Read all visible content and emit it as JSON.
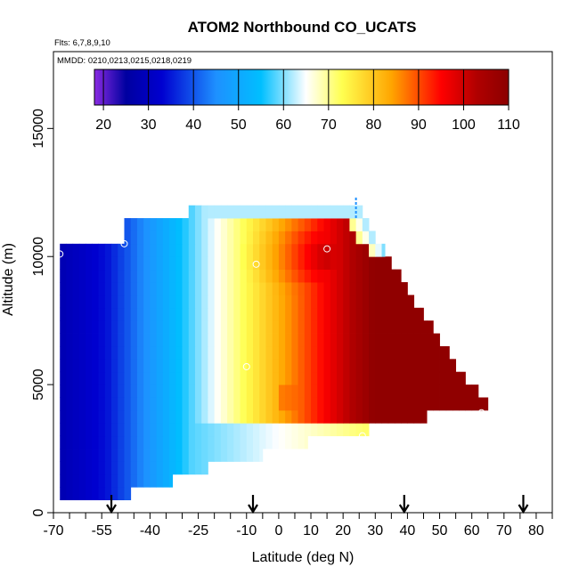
{
  "chart_data": {
    "type": "heatmap",
    "title": "ATOM2 Northbound CO_UCATS",
    "subtitle_flights": "Flts: 6,7,8,9,10",
    "subtitle_dates": "MMDD: 0210,0213,0215,0218,0219",
    "xlabel": "Latitude (deg N)",
    "ylabel": "Altitude (m)",
    "xlim": [
      -70,
      85
    ],
    "ylim": [
      0,
      18000
    ],
    "x_ticks": [
      -70,
      -55,
      -40,
      -25,
      -10,
      0,
      10,
      20,
      30,
      40,
      50,
      60,
      70,
      80
    ],
    "y_ticks": [
      0,
      5000,
      10000,
      15000
    ],
    "colorbar": {
      "min": 18,
      "max": 110,
      "ticks": [
        20,
        30,
        40,
        50,
        60,
        70,
        80,
        90,
        100,
        110
      ],
      "colors": [
        "#8a2be2",
        "#0000a0",
        "#0000d0",
        "#1e90ff",
        "#00bfff",
        "#ffffff",
        "#ffff50",
        "#ffa500",
        "#ff0000",
        "#b00000",
        "#8b0000"
      ],
      "color_stops": [
        18,
        25,
        33,
        45,
        55,
        65,
        73,
        84,
        95,
        103,
        110
      ],
      "placement": "top inside plot"
    },
    "field": {
      "description": "CO mixing ratio (ppb) by latitude and altitude",
      "rows": [
        {
          "alt_min": 500,
          "alt_max": 1000,
          "lat_min": -68,
          "lat_max": -46
        },
        {
          "alt_min": 1000,
          "alt_max": 1500,
          "lat_min": -68,
          "lat_max": -33
        },
        {
          "alt_min": 1500,
          "alt_max": 2000,
          "lat_min": -68,
          "lat_max": -22
        },
        {
          "alt_min": 2000,
          "alt_max": 2500,
          "lat_min": -68,
          "lat_max": -5
        },
        {
          "alt_min": 2500,
          "alt_max": 3000,
          "lat_min": -68,
          "lat_max": 9
        },
        {
          "alt_min": 3000,
          "alt_max": 3500,
          "lat_min": -68,
          "lat_max": 28
        },
        {
          "alt_min": 3500,
          "alt_max": 4000,
          "lat_min": -68,
          "lat_max": 46
        },
        {
          "alt_min": 4000,
          "alt_max": 4500,
          "lat_min": -68,
          "lat_max": 65
        },
        {
          "alt_min": 4500,
          "alt_max": 5000,
          "lat_min": -68,
          "lat_max": 62
        },
        {
          "alt_min": 5000,
          "alt_max": 5500,
          "lat_min": -68,
          "lat_max": 58
        },
        {
          "alt_min": 5500,
          "alt_max": 6000,
          "lat_min": -68,
          "lat_max": 55
        },
        {
          "alt_min": 6000,
          "alt_max": 6500,
          "lat_min": -68,
          "lat_max": 53
        },
        {
          "alt_min": 6500,
          "alt_max": 7000,
          "lat_min": -68,
          "lat_max": 50
        },
        {
          "alt_min": 7000,
          "alt_max": 7500,
          "lat_min": -68,
          "lat_max": 48
        },
        {
          "alt_min": 7500,
          "alt_max": 8000,
          "lat_min": -68,
          "lat_max": 45
        },
        {
          "alt_min": 8000,
          "alt_max": 8500,
          "lat_min": -68,
          "lat_max": 42
        },
        {
          "alt_min": 8500,
          "alt_max": 9000,
          "lat_min": -68,
          "lat_max": 40
        },
        {
          "alt_min": 9000,
          "alt_max": 9500,
          "lat_min": -68,
          "lat_max": 38
        },
        {
          "alt_min": 9500,
          "alt_max": 10000,
          "lat_min": -68,
          "lat_max": 35
        },
        {
          "alt_min": 10000,
          "alt_max": 10500,
          "lat_min": -68,
          "lat_max": 33
        },
        {
          "alt_min": 10500,
          "alt_max": 11000,
          "lat_min": -48,
          "lat_max": 30
        },
        {
          "alt_min": 11000,
          "alt_max": 11500,
          "lat_min": -48,
          "lat_max": 28
        },
        {
          "alt_min": 11500,
          "alt_max": 12000,
          "lat_min": -28,
          "lat_max": 26
        }
      ],
      "core": {
        "lat": 15,
        "alt": 10000,
        "peak_value": 102
      },
      "outflow_tongue": {
        "lat_start": 0,
        "lat_end": 65,
        "alt_start": 4000,
        "alt_end": 5000,
        "value": 100
      },
      "southern_background": {
        "lat_end": -55,
        "value": 27
      },
      "low_level_background": 55
    },
    "markers": {
      "circles": [
        {
          "lat": -68,
          "alt": 10100
        },
        {
          "lat": -48,
          "alt": 10500
        },
        {
          "lat": -7,
          "alt": 9700
        },
        {
          "lat": 15,
          "alt": 10300
        },
        {
          "lat": -10,
          "alt": 5700
        },
        {
          "lat": 63,
          "alt": 3900
        },
        {
          "lat": 26,
          "alt": 3000
        }
      ],
      "arrows_lat": [
        -52,
        -8,
        39,
        76
      ],
      "dashes": [
        {
          "lat": 24,
          "alt_min": 11500,
          "alt_max": 12300
        }
      ]
    }
  }
}
